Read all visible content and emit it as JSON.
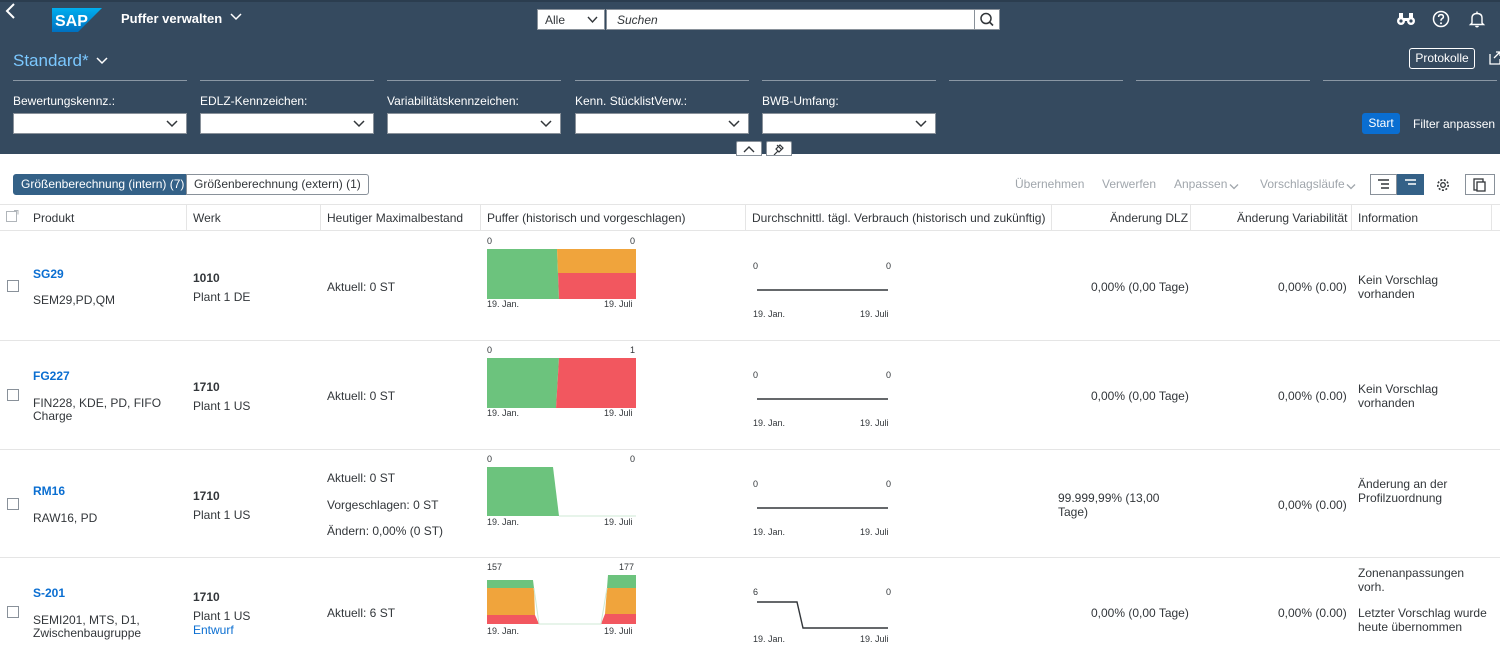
{
  "shell": {
    "app_title": "Puffer verwalten",
    "search_scope": "Alle",
    "search_placeholder": "Suchen"
  },
  "filterbar": {
    "variant": "Standard*",
    "protokolle_label": "Protokolle",
    "fields": [
      {
        "label": "Bewertungskennz.:",
        "value": ""
      },
      {
        "label": "EDLZ-Kennzeichen:",
        "value": ""
      },
      {
        "label": "Variabilitätskennzeichen:",
        "value": ""
      },
      {
        "label": "Kenn. StücklistVerw.:",
        "value": ""
      },
      {
        "label": "BWB-Umfang:",
        "value": ""
      }
    ],
    "start_label": "Start",
    "adapt_label": "Filter anpassen"
  },
  "toolbar": {
    "tab_internal": "Größenberechnung (intern) (7)",
    "tab_external": "Größenberechnung (extern) (1)",
    "accept": "Übernehmen",
    "discard": "Verwerfen",
    "adjust": "Anpassen",
    "proposal_runs": "Vorschlagsläufe"
  },
  "table": {
    "columns": {
      "product": "Produkt",
      "plant": "Werk",
      "max_stock": "Heutiger Maximalbestand",
      "buffer": "Puffer (historisch und vorgeschlagen)",
      "adc": "Durchschnittl. tägl. Verbrauch (historisch und zukünftig)",
      "dlt_change": "Änderung DLZ",
      "var_change": "Änderung Variabilität",
      "info": "Information"
    },
    "rows": [
      {
        "product_id": "SG29",
        "product_desc": "SEM29,PD,QM",
        "plant_id": "1010",
        "plant_name": "Plant 1 DE",
        "plant_status": "",
        "stock_lines": [
          "Aktuell: 0 ST"
        ],
        "buffer_left": "0",
        "buffer_right": "0",
        "adc_left": "0",
        "adc_right": "0",
        "date_start": "19. Jan.",
        "date_end": "19. Juli",
        "dlt_change": "0,00% (0,00 Tage)",
        "var_change": "0,00% (0.00)",
        "info_lines": [
          "Kein Vorschlag",
          "vorhanden"
        ]
      },
      {
        "product_id": "FG227",
        "product_desc_1": "FIN228, KDE, PD, FIFO",
        "product_desc_2": "Charge",
        "plant_id": "1710",
        "plant_name": "Plant 1 US",
        "plant_status": "",
        "stock_lines": [
          "Aktuell: 0 ST"
        ],
        "buffer_left": "0",
        "buffer_right": "1",
        "adc_left": "0",
        "adc_right": "0",
        "date_start": "19. Jan.",
        "date_end": "19. Juli",
        "dlt_change": "0,00% (0,00 Tage)",
        "var_change": "0,00% (0.00)",
        "info_lines": [
          "Kein Vorschlag",
          "vorhanden"
        ]
      },
      {
        "product_id": "RM16",
        "product_desc": "RAW16, PD",
        "plant_id": "1710",
        "plant_name": "Plant 1 US",
        "plant_status": "",
        "stock_lines": [
          "Aktuell: 0 ST",
          "Vorgeschlagen: 0 ST",
          "Ändern: 0,00% (0 ST)"
        ],
        "buffer_left": "0",
        "buffer_right": "0",
        "adc_left": "0",
        "adc_right": "0",
        "date_start": "19. Jan.",
        "date_end": "19. Juli",
        "dlt_change_1": "99.999,99% (13,00",
        "dlt_change_2": "Tage)",
        "var_change": "0,00% (0.00)",
        "info_lines": [
          "Änderung an der",
          "Profilzuordnung"
        ]
      },
      {
        "product_id": "S-201",
        "product_desc_1": "SEMI201, MTS, D1,",
        "product_desc_2": "Zwischenbaugruppe",
        "plant_id": "1710",
        "plant_name": "Plant 1 US",
        "plant_status": "Entwurf",
        "stock_lines": [
          "Aktuell: 6 ST"
        ],
        "buffer_left": "157",
        "buffer_right": "177",
        "adc_left": "6",
        "adc_right": "0",
        "date_start": "19. Jan.",
        "date_end": "19. Juli",
        "dlt_change": "0,00% (0,00 Tage)",
        "var_change": "0,00% (0.00)",
        "info_lines": [
          "Zonenanpassungen",
          "vorh.",
          "Letzter Vorschlag wurde",
          "heute übernommen"
        ]
      }
    ]
  },
  "colors": {
    "shell": "#354a5f",
    "accent": "#0a6ed1",
    "zone_green": "#6cc37d",
    "zone_yellow": "#f0a43c",
    "zone_red": "#f2575f"
  }
}
